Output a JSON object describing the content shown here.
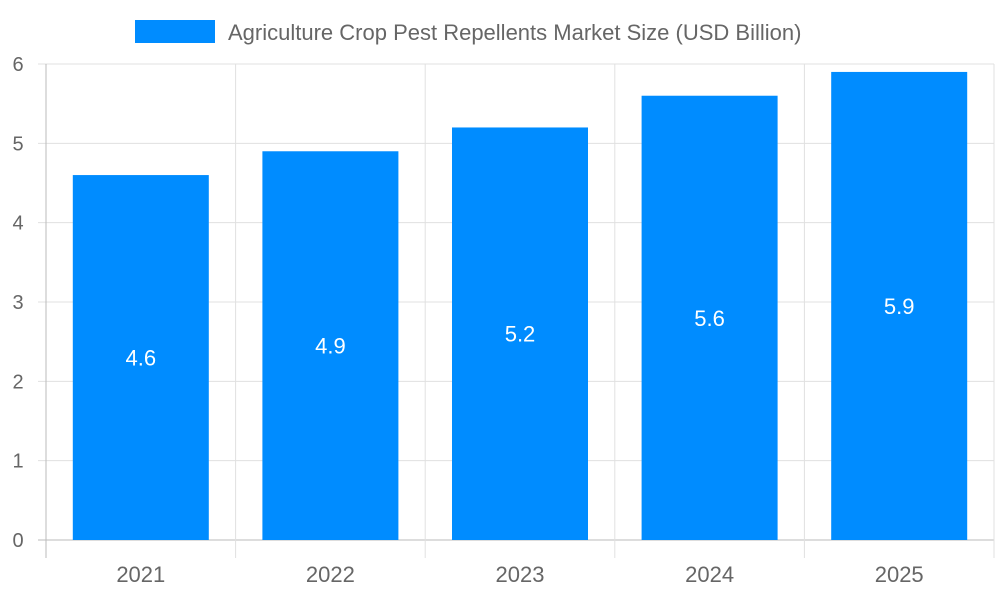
{
  "chart_data": {
    "type": "bar",
    "title": "",
    "legend": {
      "label": "Agriculture Crop Pest Repellents Market Size (USD Billion)",
      "position": "top"
    },
    "categories": [
      "2021",
      "2022",
      "2023",
      "2024",
      "2025"
    ],
    "values": [
      4.6,
      4.9,
      5.2,
      5.6,
      5.9
    ],
    "data_labels": [
      "4.6",
      "4.9",
      "5.2",
      "5.6",
      "5.9"
    ],
    "xlabel": "",
    "ylabel": "",
    "ylim": [
      0,
      6
    ],
    "yticks": [
      "0",
      "1",
      "2",
      "3",
      "4",
      "5",
      "6"
    ],
    "grid": true,
    "colors": {
      "bar": "#008cff",
      "grid": "#e0e0e0",
      "text": "#666666",
      "label": "#ffffff"
    }
  }
}
